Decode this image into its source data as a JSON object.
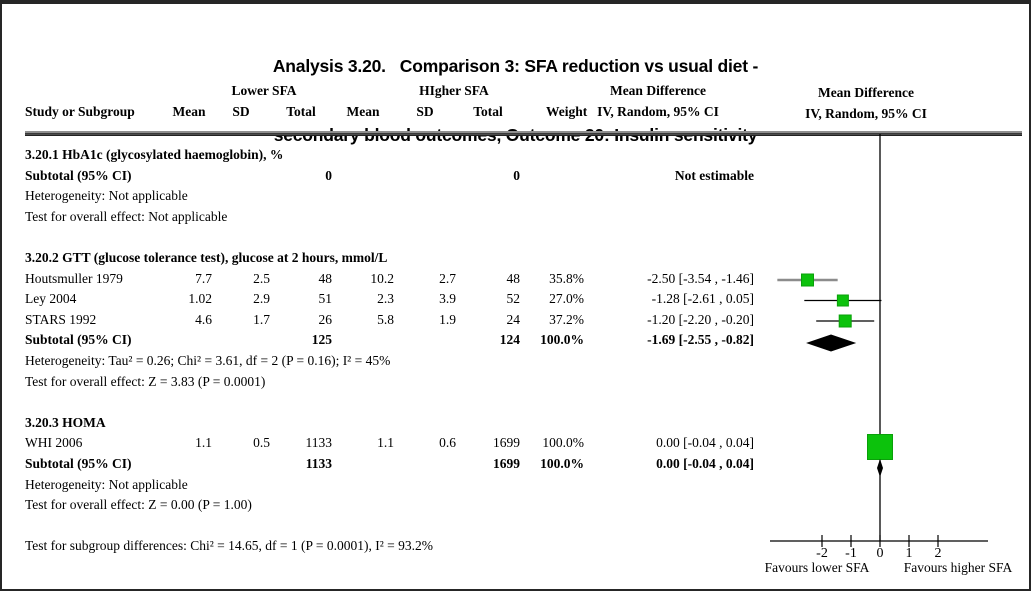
{
  "title": {
    "line1": "Analysis 3.20.   Comparison 3: SFA reduction vs usual diet -",
    "line2": "secondary blood outcomes, Outcome 20: Insulin sensitivity"
  },
  "header": {
    "study": "Study or Subgroup",
    "group_lower": "Lower SFA",
    "group_higher": "HIgher SFA",
    "mean": "Mean",
    "sd": "SD",
    "total": "Total",
    "weight": "Weight",
    "mean_difference": "Mean Difference",
    "method": "IV, Random, 95% CI"
  },
  "sections": [
    {
      "heading": "3.20.1 HbA1c (glycosylated haemoglobin), %",
      "subtotal": {
        "label": "Subtotal (95% CI)",
        "total1": "0",
        "total2": "0",
        "weight": "",
        "ci": "Not estimable"
      },
      "heterogeneity": "Heterogeneity: Not applicable",
      "overall": "Test for overall effect: Not applicable"
    },
    {
      "heading": "3.20.2 GTT (glucose tolerance test), glucose at 2 hours, mmol/L",
      "rows": [
        {
          "study": "Houtsmuller 1979",
          "mean1": "7.7",
          "sd1": "2.5",
          "total1": "48",
          "mean2": "10.2",
          "sd2": "2.7",
          "total2": "48",
          "weight": "35.8%",
          "ci": "-2.50 [-3.54 , -1.46]"
        },
        {
          "study": "Ley 2004",
          "mean1": "1.02",
          "sd1": "2.9",
          "total1": "51",
          "mean2": "2.3",
          "sd2": "3.9",
          "total2": "52",
          "weight": "27.0%",
          "ci": "-1.28 [-2.61 , 0.05]"
        },
        {
          "study": "STARS 1992",
          "mean1": "4.6",
          "sd1": "1.7",
          "total1": "26",
          "mean2": "5.8",
          "sd2": "1.9",
          "total2": "24",
          "weight": "37.2%",
          "ci": "-1.20 [-2.20 , -0.20]"
        }
      ],
      "subtotal": {
        "label": "Subtotal (95% CI)",
        "total1": "125",
        "total2": "124",
        "weight": "100.0%",
        "ci": "-1.69 [-2.55 , -0.82]"
      },
      "heterogeneity": "Heterogeneity: Tau² = 0.26; Chi² = 3.61, df = 2 (P = 0.16); I² = 45%",
      "overall": "Test for overall effect: Z = 3.83 (P = 0.0001)"
    },
    {
      "heading": "3.20.3 HOMA",
      "rows": [
        {
          "study": "WHI 2006",
          "mean1": "1.1",
          "sd1": "0.5",
          "total1": "1133",
          "mean2": "1.1",
          "sd2": "0.6",
          "total2": "1699",
          "weight": "100.0%",
          "ci": "0.00 [-0.04 , 0.04]"
        }
      ],
      "subtotal": {
        "label": "Subtotal (95% CI)",
        "total1": "1133",
        "total2": "1699",
        "weight": "100.0%",
        "ci": "0.00 [-0.04 , 0.04]"
      },
      "heterogeneity": "Heterogeneity: Not applicable",
      "overall": "Test for overall effect: Z = 0.00 (P = 1.00)"
    }
  ],
  "footer": {
    "subgroup_test": "Test for subgroup differences: Chi² = 14.65, df = 1 (P = 0.0001), I² = 93.2%"
  },
  "axis": {
    "favours_left": "Favours lower SFA",
    "favours_right": "Favours higher SFA"
  },
  "colors": {
    "marker": "#0cc20c",
    "marker_edge": "#0aa00a",
    "ci_grey": "#8c8c8c",
    "ci_black": "#000000",
    "diamond": "#000000"
  },
  "chart_data": {
    "type": "scatter",
    "subtype": "forest-plot",
    "effect_measure": "Mean Difference, IV, Random, 95% CI",
    "x_axis": {
      "ticks": [
        -2,
        -1,
        0,
        1,
        2
      ],
      "label_left": "Favours lower SFA",
      "label_right": "Favours higher SFA"
    },
    "subgroups": [
      {
        "name": "3.20.1 HbA1c (glycosylated haemoglobin), %",
        "studies": [],
        "subtotal": null,
        "note": "Not estimable"
      },
      {
        "name": "3.20.2 GTT (glucose tolerance test), glucose at 2 hours, mmol/L",
        "studies": [
          {
            "study": "Houtsmuller 1979",
            "md": -2.5,
            "ci_low": -3.54,
            "ci_high": -1.46,
            "weight": 35.8
          },
          {
            "study": "Ley 2004",
            "md": -1.28,
            "ci_low": -2.61,
            "ci_high": 0.05,
            "weight": 27.0
          },
          {
            "study": "STARS 1992",
            "md": -1.2,
            "ci_low": -2.2,
            "ci_high": -0.2,
            "weight": 37.2
          }
        ],
        "subtotal": {
          "md": -1.69,
          "ci_low": -2.55,
          "ci_high": -0.82
        }
      },
      {
        "name": "3.20.3 HOMA",
        "studies": [
          {
            "study": "WHI 2006",
            "md": 0.0,
            "ci_low": -0.04,
            "ci_high": 0.04,
            "weight": 100.0
          }
        ],
        "subtotal": {
          "md": 0.0,
          "ci_low": -0.04,
          "ci_high": 0.04
        }
      }
    ]
  }
}
